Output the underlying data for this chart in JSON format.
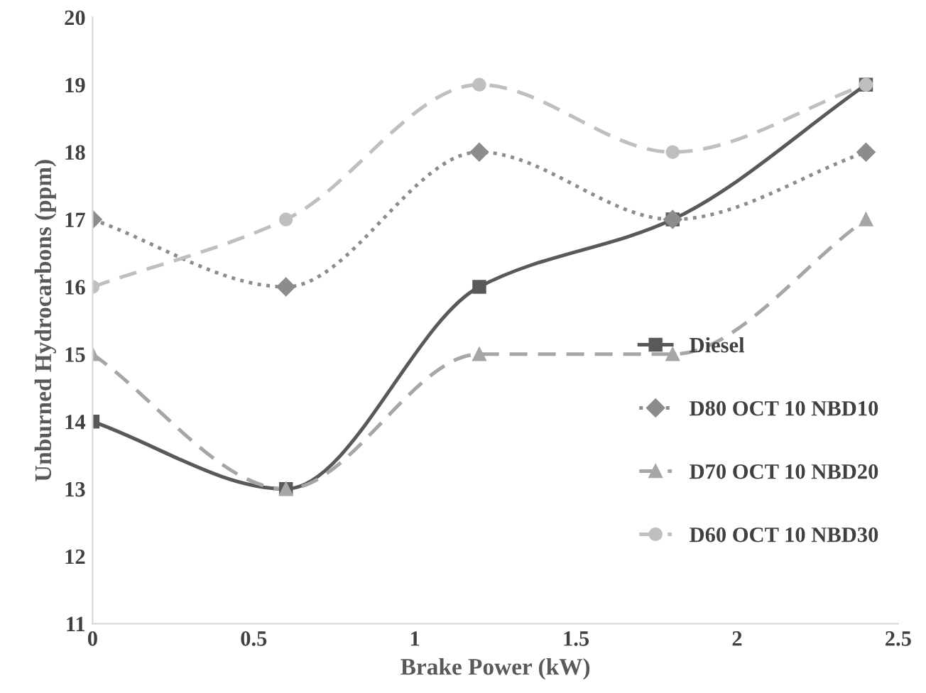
{
  "chart_data": {
    "type": "line",
    "xlabel": "Brake Power (kW)",
    "ylabel": "Unburned Hydrocarbons (ppm)",
    "x": [
      0,
      0.6,
      1.2,
      1.8,
      2.4
    ],
    "xlim": [
      0,
      2.5
    ],
    "xticks": [
      0,
      0.5,
      1,
      1.5,
      2,
      2.5
    ],
    "ylim": [
      11,
      20
    ],
    "yticks": [
      11,
      12,
      13,
      14,
      15,
      16,
      17,
      18,
      19,
      20
    ],
    "grid": false,
    "legend": "right",
    "series": [
      {
        "name": "Diesel",
        "color": "#595959",
        "values": [
          14,
          13,
          16,
          17,
          19
        ],
        "marker": "square",
        "line_style": "solid"
      },
      {
        "name": "D80 OCT 10 NBD10",
        "color": "#8c8c8c",
        "values": [
          17,
          16,
          18,
          17,
          18
        ],
        "marker": "diamond",
        "line_style": "dotted"
      },
      {
        "name": "D70 OCT 10 NBD20",
        "color": "#a6a6a6",
        "values": [
          15,
          13,
          15,
          15,
          17
        ],
        "marker": "triangle",
        "line_style": "dashed"
      },
      {
        "name": "D60 OCT 10 NBD30",
        "color": "#bfbfbf",
        "values": [
          16,
          17,
          19,
          18,
          19
        ],
        "marker": "circle",
        "line_style": "dashed"
      }
    ]
  }
}
